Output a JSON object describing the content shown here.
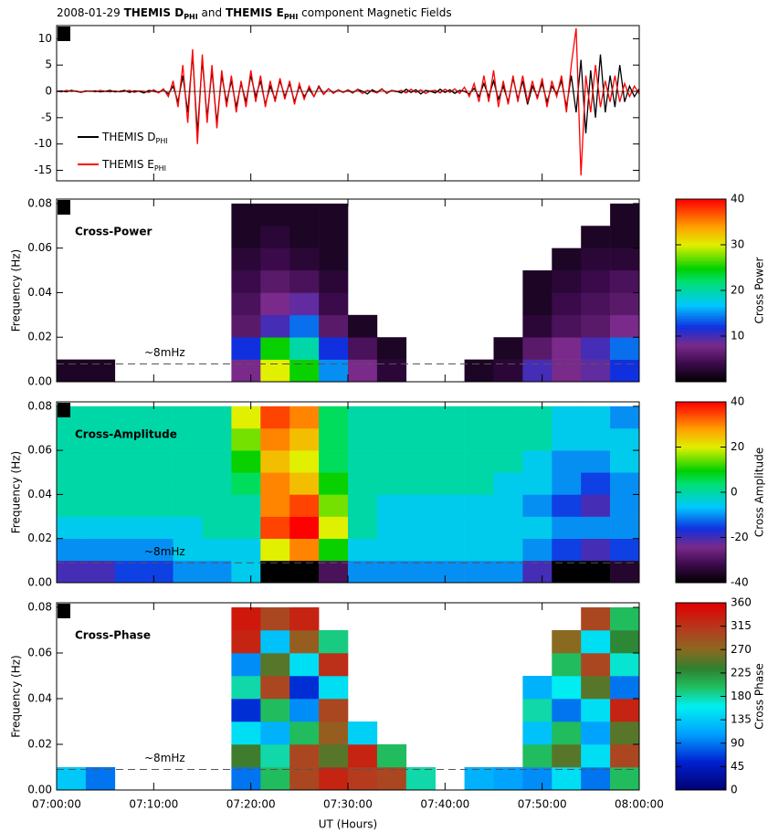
{
  "title_parts": [
    "2008-01-29 ",
    "THEMIS D",
    "PHI",
    " and ",
    "THEMIS E",
    "PHI",
    " component Magnetic Fields"
  ],
  "chart_data": [
    {
      "type": "line",
      "panel_label": "a",
      "xlim": [
        0,
        60
      ],
      "ylim": [
        -17,
        12.5
      ],
      "yticks": [
        -15,
        -10,
        -5,
        0,
        5,
        10
      ],
      "x": [
        0,
        0.5,
        1,
        1.5,
        2,
        2.5,
        3,
        3.5,
        4,
        4.5,
        5,
        5.5,
        6,
        6.5,
        7,
        7.5,
        8,
        8.5,
        9,
        9.5,
        10,
        10.5,
        11,
        11.5,
        12,
        12.5,
        13,
        13.5,
        14,
        14.5,
        15,
        15.5,
        16,
        16.5,
        17,
        17.5,
        18,
        18.5,
        19,
        19.5,
        20,
        20.5,
        21,
        21.5,
        22,
        22.5,
        23,
        23.5,
        24,
        24.5,
        25,
        25.5,
        26,
        26.5,
        27,
        27.5,
        28,
        28.5,
        29,
        29.5,
        30,
        30.5,
        31,
        31.5,
        32,
        32.5,
        33,
        33.5,
        34,
        34.5,
        35,
        35.5,
        36,
        36.5,
        37,
        37.5,
        38,
        38.5,
        39,
        39.5,
        40,
        40.5,
        41,
        41.5,
        42,
        42.5,
        43,
        43.5,
        44,
        44.5,
        45,
        45.5,
        46,
        46.5,
        47,
        47.5,
        48,
        48.5,
        49,
        49.5,
        50,
        50.5,
        51,
        51.5,
        52,
        52.5,
        53,
        53.5,
        54,
        54.5,
        55,
        55.5,
        56,
        56.5,
        57,
        57.5,
        58,
        58.5,
        59,
        59.5,
        60
      ],
      "series": [
        {
          "name": "THEMIS D",
          "name_sub": "PHI",
          "color": "#000000",
          "values": [
            0,
            0.1,
            -0.1,
            0.2,
            0,
            -0.2,
            0.1,
            0,
            0.1,
            -0.1,
            0,
            0.2,
            -0.1,
            0,
            0.2,
            -0.2,
            0.1,
            0,
            -0.3,
            0.2,
            0,
            -0.2,
            0.3,
            -0.5,
            1,
            -2,
            3,
            -4,
            7,
            -8,
            6,
            -5,
            4,
            -6,
            3,
            -2,
            2,
            -3,
            1.5,
            -2,
            3,
            -1,
            2,
            -2.5,
            1,
            -1.5,
            2,
            -1,
            1.5,
            -2,
            1,
            -1,
            0.5,
            -1,
            1,
            -0.5,
            0.5,
            -0.3,
            0.3,
            -0.2,
            0.2,
            -0.3,
            0.4,
            0,
            -0.5,
            0.3,
            -0.2,
            0.5,
            -0.4,
            0.2,
            0,
            -0.3,
            0.4,
            -0.2,
            0.3,
            -0.5,
            0.2,
            0,
            -0.3,
            0.4,
            -0.2,
            0.3,
            -0.4,
            0.2,
            0,
            -0.5,
            0.6,
            -1,
            1.5,
            -1,
            2,
            -1.5,
            1,
            -2,
            2.5,
            -1.5,
            2,
            -2.5,
            1,
            -1,
            1.5,
            -2,
            1,
            -0.5,
            2,
            -3,
            3,
            -4,
            6,
            -8,
            4,
            -5,
            7,
            -4,
            3,
            -3,
            5,
            -2,
            1,
            -1,
            0.5
          ]
        },
        {
          "name": "THEMIS E",
          "name_sub": "PHI",
          "color": "#ff0000",
          "values": [
            0,
            -0.1,
            0.2,
            0,
            0.1,
            -0.2,
            0,
            0.1,
            -0.1,
            0.2,
            0,
            -0.1,
            0.1,
            -0.1,
            0,
            0.2,
            -0.2,
            0.1,
            0,
            -0.2,
            0.3,
            -0.3,
            0.5,
            -1,
            2,
            -3,
            5,
            -6,
            8,
            -10,
            7,
            -6,
            5,
            -7,
            4,
            -3,
            3,
            -4,
            2,
            -3,
            4,
            -2,
            3,
            -3,
            2,
            -2,
            2.5,
            -1.5,
            2,
            -2.5,
            1.5,
            -1.5,
            1,
            -1,
            0.8,
            -0.6,
            0.5,
            -0.4,
            0.3,
            -0.2,
            0.3,
            -0.2,
            0.3,
            -0.4,
            0.2,
            0,
            -0.3,
            0.4,
            -0.3,
            0.2,
            -0.1,
            0.2,
            -0.3,
            0.4,
            -0.2,
            0.3,
            -0.4,
            0.1,
            0.2,
            -0.3,
            0.4,
            -0.2,
            0.5,
            -0.4,
            0.8,
            -1,
            1.5,
            -2,
            3,
            -2,
            4,
            -3,
            2,
            -2.5,
            3,
            -2,
            3,
            -2,
            2,
            -1.5,
            2.5,
            -3,
            2,
            -1,
            3,
            -4,
            5,
            12,
            -16,
            3,
            -4,
            5,
            -3,
            2,
            -2,
            3,
            -2,
            1.5,
            -1,
            1,
            -0.5
          ]
        }
      ]
    },
    {
      "type": "heatmap",
      "panel_label": "b",
      "label": "Cross-Power",
      "mark_label": "~8mHz",
      "hline": 0.008,
      "ylabel": "Frequency (Hz)",
      "colorbar_label": "Cross Power",
      "colorscale": "rainbow",
      "xlim": [
        0,
        60
      ],
      "ylim": [
        0,
        0.082
      ],
      "yticks": [
        {
          "value": 0,
          "label": "0.00"
        },
        {
          "value": 0.02,
          "label": "0.02"
        },
        {
          "value": 0.04,
          "label": "0.04"
        },
        {
          "value": 0.06,
          "label": "0.06"
        },
        {
          "value": 0.08,
          "label": "0.08"
        }
      ],
      "clim": [
        0,
        40
      ],
      "cticks": [
        10,
        20,
        30,
        40
      ],
      "x_edges": [
        0,
        3,
        6,
        9,
        12,
        15,
        18,
        21,
        24,
        27,
        30,
        33,
        36,
        39,
        42,
        45,
        48,
        51,
        54,
        57,
        60
      ],
      "y_edges": [
        0,
        0.01,
        0.02,
        0.03,
        0.04,
        0.05,
        0.06,
        0.07,
        0.08
      ],
      "z": [
        [
          2,
          2,
          null,
          null,
          null,
          null,
          8,
          30,
          25,
          15,
          8,
          3,
          null,
          null,
          2,
          3,
          10,
          8,
          9,
          12
        ],
        [
          null,
          null,
          null,
          null,
          null,
          null,
          12,
          25,
          20,
          12,
          5,
          2,
          null,
          null,
          null,
          2,
          6,
          8,
          10,
          14
        ],
        [
          null,
          null,
          null,
          null,
          null,
          null,
          6,
          10,
          14,
          6,
          2,
          null,
          null,
          null,
          null,
          null,
          3,
          5,
          6,
          8
        ],
        [
          null,
          null,
          null,
          null,
          null,
          null,
          5,
          8,
          9,
          4,
          null,
          null,
          null,
          null,
          null,
          null,
          2,
          4,
          5,
          6
        ],
        [
          null,
          null,
          null,
          null,
          null,
          null,
          4,
          6,
          5,
          3,
          null,
          null,
          null,
          null,
          null,
          null,
          2,
          3,
          4,
          5
        ],
        [
          null,
          null,
          null,
          null,
          null,
          null,
          3,
          4,
          3,
          2,
          null,
          null,
          null,
          null,
          null,
          null,
          null,
          2,
          3,
          3
        ],
        [
          null,
          null,
          null,
          null,
          null,
          null,
          2,
          3,
          2,
          2,
          null,
          null,
          null,
          null,
          null,
          null,
          null,
          null,
          2,
          2
        ],
        [
          null,
          null,
          null,
          null,
          null,
          null,
          2,
          2,
          2,
          2,
          null,
          null,
          null,
          null,
          null,
          null,
          null,
          null,
          null,
          2
        ]
      ]
    },
    {
      "type": "heatmap",
      "panel_label": "c",
      "label": "Cross-Amplitude",
      "mark_label": "~8mHz",
      "hline": 0.009,
      "ylabel": "Frequency (Hz)",
      "colorbar_label": "Cross Amplitude",
      "colorscale": "rainbow",
      "xlim": [
        0,
        60
      ],
      "ylim": [
        0,
        0.082
      ],
      "yticks": [
        {
          "value": 0,
          "label": "0.00"
        },
        {
          "value": 0.02,
          "label": "0.02"
        },
        {
          "value": 0.04,
          "label": "0.04"
        },
        {
          "value": 0.06,
          "label": "0.06"
        },
        {
          "value": 0.08,
          "label": "0.08"
        }
      ],
      "clim": [
        -40,
        40
      ],
      "cticks": [
        -40,
        -20,
        0,
        20,
        40
      ],
      "x_edges": [
        0,
        3,
        6,
        9,
        12,
        15,
        18,
        21,
        24,
        27,
        30,
        33,
        36,
        39,
        42,
        45,
        48,
        51,
        54,
        57,
        60
      ],
      "y_edges": [
        0,
        0.01,
        0.02,
        0.03,
        0.04,
        0.05,
        0.06,
        0.07,
        0.08
      ],
      "z": [
        [
          -20,
          -20,
          -15,
          -15,
          -10,
          -10,
          -5,
          -40,
          -40,
          -30,
          -10,
          -10,
          -10,
          -10,
          -10,
          -10,
          -20,
          -40,
          -40,
          -35
        ],
        [
          -10,
          -10,
          -10,
          -10,
          -5,
          -5,
          -5,
          20,
          30,
          10,
          -5,
          -5,
          -5,
          -5,
          -5,
          -5,
          -10,
          -15,
          -20,
          -15
        ],
        [
          -5,
          -5,
          -5,
          -5,
          -5,
          0,
          0,
          35,
          40,
          20,
          0,
          -5,
          -5,
          -5,
          -5,
          -5,
          -5,
          -10,
          -10,
          -10
        ],
        [
          0,
          0,
          0,
          0,
          0,
          0,
          0,
          30,
          35,
          15,
          0,
          -5,
          -5,
          -5,
          -5,
          -5,
          -10,
          -15,
          -20,
          -10
        ],
        [
          0,
          0,
          0,
          0,
          0,
          0,
          5,
          30,
          25,
          10,
          0,
          0,
          0,
          0,
          0,
          -5,
          -5,
          -10,
          -15,
          -10
        ],
        [
          0,
          0,
          0,
          0,
          0,
          0,
          10,
          25,
          20,
          5,
          0,
          0,
          0,
          0,
          0,
          0,
          -5,
          -10,
          -10,
          -5
        ],
        [
          0,
          0,
          0,
          0,
          0,
          0,
          15,
          30,
          25,
          5,
          0,
          0,
          0,
          0,
          0,
          0,
          0,
          -5,
          -5,
          -5
        ],
        [
          0,
          0,
          0,
          0,
          0,
          0,
          20,
          35,
          30,
          5,
          0,
          0,
          0,
          0,
          0,
          0,
          0,
          -5,
          -5,
          -10
        ]
      ]
    },
    {
      "type": "heatmap",
      "panel_label": "d",
      "label": "Cross-Phase",
      "mark_label": "~8mHz",
      "hline": 0.009,
      "ylabel": "Frequency (Hz)",
      "colorbar_label": "Cross Phase",
      "colorscale": "phase",
      "xlabel": "UT (Hours)",
      "xlim": [
        0,
        60
      ],
      "ylim": [
        0,
        0.082
      ],
      "xticks": [
        {
          "value": 0,
          "label": "07:00:00"
        },
        {
          "value": 10,
          "label": "07:10:00"
        },
        {
          "value": 20,
          "label": "07:20:00"
        },
        {
          "value": 30,
          "label": "07:30:00"
        },
        {
          "value": 40,
          "label": "07:40:00"
        },
        {
          "value": 50,
          "label": "07:50:00"
        },
        {
          "value": 60,
          "label": "08:00:00"
        }
      ],
      "yticks": [
        {
          "value": 0,
          "label": "0.00"
        },
        {
          "value": 0.02,
          "label": "0.02"
        },
        {
          "value": 0.04,
          "label": "0.04"
        },
        {
          "value": 0.06,
          "label": "0.06"
        },
        {
          "value": 0.08,
          "label": "0.08"
        }
      ],
      "clim": [
        0,
        360
      ],
      "cticks": [
        0,
        45,
        90,
        135,
        180,
        225,
        270,
        315,
        360
      ],
      "x_edges": [
        0,
        3,
        6,
        9,
        12,
        15,
        18,
        21,
        24,
        27,
        30,
        33,
        36,
        39,
        42,
        45,
        48,
        51,
        54,
        57,
        60
      ],
      "y_edges": [
        0,
        0.01,
        0.02,
        0.03,
        0.04,
        0.05,
        0.06,
        0.07,
        0.08
      ],
      "z": [
        [
          135,
          90,
          null,
          null,
          null,
          null,
          90,
          200,
          300,
          330,
          310,
          300,
          180,
          null,
          120,
          110,
          100,
          150,
          90,
          200
        ],
        [
          null,
          null,
          null,
          null,
          null,
          null,
          240,
          180,
          300,
          250,
          330,
          200,
          null,
          null,
          null,
          null,
          200,
          250,
          150,
          300
        ],
        [
          null,
          null,
          null,
          null,
          null,
          null,
          150,
          120,
          200,
          280,
          140,
          null,
          null,
          null,
          null,
          null,
          130,
          200,
          110,
          250
        ],
        [
          null,
          null,
          null,
          null,
          null,
          null,
          60,
          200,
          100,
          300,
          null,
          null,
          null,
          null,
          null,
          null,
          180,
          90,
          150,
          330
        ],
        [
          null,
          null,
          null,
          null,
          null,
          null,
          180,
          300,
          60,
          150,
          null,
          null,
          null,
          null,
          null,
          null,
          120,
          160,
          250,
          90
        ],
        [
          null,
          null,
          null,
          null,
          null,
          null,
          100,
          250,
          150,
          320,
          null,
          null,
          null,
          null,
          null,
          null,
          null,
          200,
          300,
          170
        ],
        [
          null,
          null,
          null,
          null,
          null,
          null,
          330,
          130,
          280,
          190,
          null,
          null,
          null,
          null,
          null,
          null,
          null,
          270,
          150,
          230
        ],
        [
          null,
          null,
          null,
          null,
          null,
          null,
          340,
          300,
          330,
          null,
          null,
          null,
          null,
          null,
          null,
          null,
          null,
          null,
          300,
          200
        ]
      ]
    }
  ]
}
